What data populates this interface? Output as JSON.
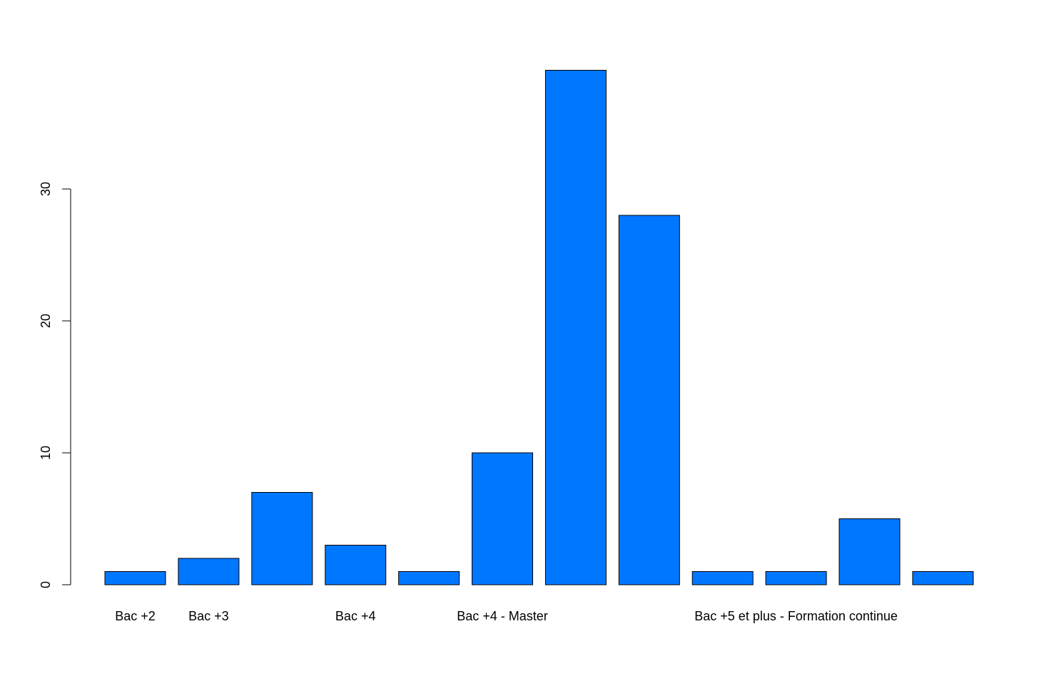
{
  "chart_data": {
    "type": "bar",
    "title": "",
    "xlabel": "",
    "ylabel": "",
    "bar_color": "#0077FF",
    "bar_border_color": "#000000",
    "ylim": [
      0,
      39
    ],
    "yticks": [
      0,
      10,
      20,
      30
    ],
    "ytick_labels": [
      "0",
      "10",
      "20",
      "30"
    ],
    "grid": false,
    "legend": "none",
    "categories": [
      "Bac +2",
      "Bac +3",
      "",
      "Bac +4",
      "",
      "Bac +4 - Master",
      "",
      "",
      "",
      "Bac +5 et plus - Formation continue",
      "",
      ""
    ],
    "values": [
      1,
      2,
      7,
      3,
      1,
      10,
      39,
      28,
      1,
      1,
      5,
      1
    ]
  }
}
